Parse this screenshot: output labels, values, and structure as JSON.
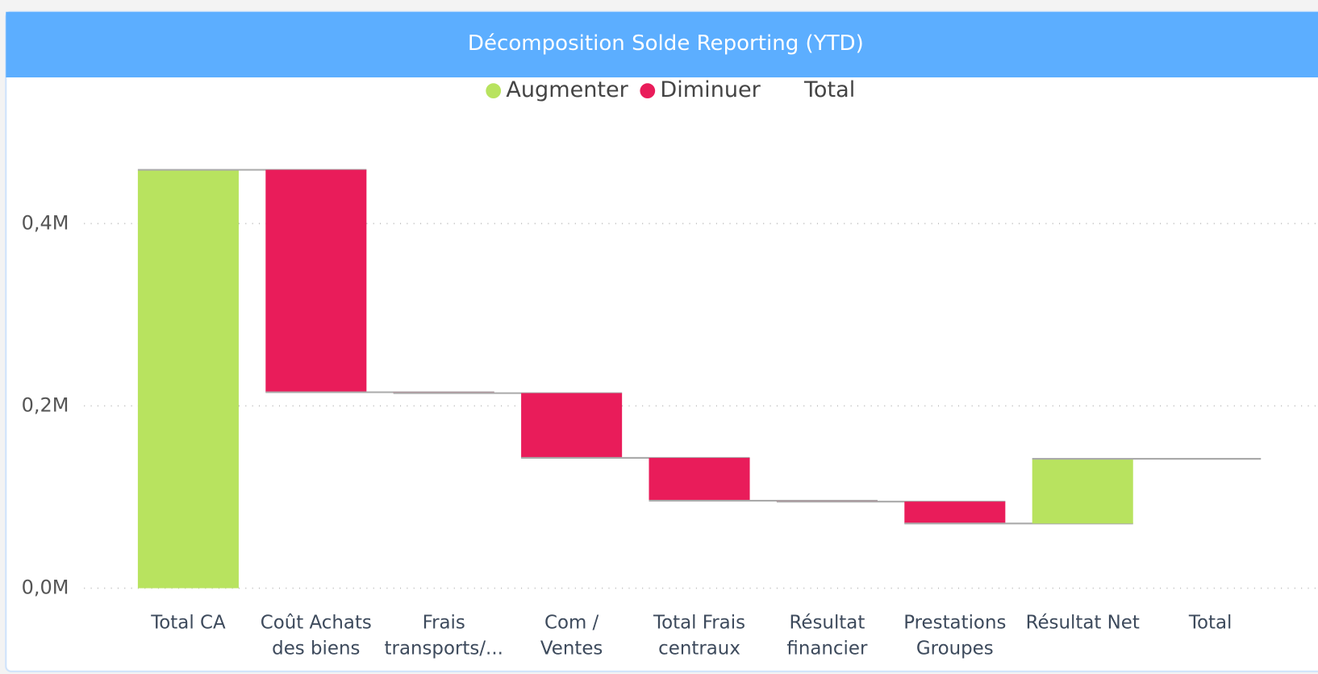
{
  "chart_data": {
    "type": "waterfall",
    "title": "Décomposition Solde Reporting  (YTD)",
    "legend": [
      {
        "name": "Augmenter",
        "color": "#b8e35f"
      },
      {
        "name": "Diminuer",
        "color": "#e91c5a"
      },
      {
        "name": "Total"
      }
    ],
    "categories": [
      [
        "Total CA"
      ],
      [
        "Coût Achats",
        "des biens"
      ],
      [
        "Frais",
        "transports/..."
      ],
      [
        "Com /",
        "Ventes"
      ],
      [
        "Total Frais",
        "centraux"
      ],
      [
        "Résultat",
        "financier"
      ],
      [
        "Prestations",
        "Groupes"
      ],
      [
        "Résultat Net"
      ],
      [
        "Total"
      ]
    ],
    "values": [
      459000,
      -244000,
      -1000,
      -71000,
      -47000,
      -1000,
      -24000,
      71000,
      142000
    ],
    "measure": [
      "relative",
      "relative",
      "relative",
      "relative",
      "relative",
      "relative",
      "relative",
      "relative",
      "total"
    ],
    "ylim": [
      0,
      480000
    ],
    "yticks": [
      {
        "value": 0,
        "label": "0,0M"
      },
      {
        "value": 200000,
        "label": "0,2M"
      },
      {
        "value": 400000,
        "label": "0,4M"
      }
    ],
    "grid": true
  }
}
